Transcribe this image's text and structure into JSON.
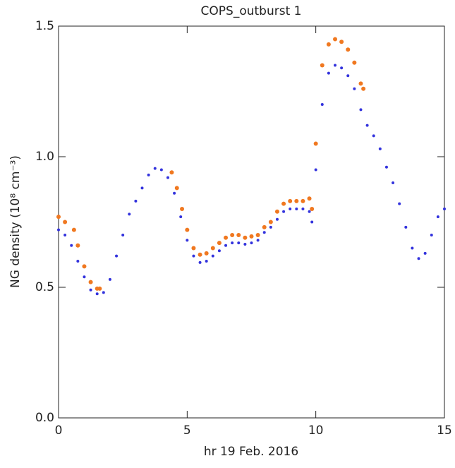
{
  "chart_data": {
    "type": "scatter",
    "title": "COPS_outburst 1",
    "x_label": "hr 19 Feb. 2016",
    "y_label": "NG density (10⁸ cm⁻³)",
    "xlim": [
      0,
      15
    ],
    "xticks": [
      0,
      5,
      10,
      15
    ],
    "ylim": [
      0,
      1.5
    ],
    "yticks": [
      {
        "value": 0,
        "label": "0.0"
      },
      0.5,
      {
        "value": 1,
        "label": "1.0"
      },
      {
        "value": 1.5,
        "label": "1.5"
      }
    ],
    "series": [
      {
        "color": "#3333dd",
        "x": [
          0,
          0.25,
          0.5,
          0.75,
          1,
          1.25,
          1.5,
          1.75,
          2,
          2.25,
          2.5,
          2.75,
          3,
          3.25,
          3.5,
          3.75,
          4,
          4.25,
          4.5,
          4.75,
          5,
          5.25,
          5.5,
          5.75,
          6,
          6.25,
          6.5,
          6.75,
          7,
          7.25,
          7.5,
          7.75,
          8,
          8.25,
          8.5,
          8.75,
          9,
          9.25,
          9.5,
          9.75,
          9.85,
          10,
          10.25,
          10.5,
          10.75,
          11,
          11.25,
          11.5,
          11.75,
          12,
          12.25,
          12.5,
          12.75,
          13,
          13.25,
          13.5,
          13.75,
          14,
          14.25,
          14.5,
          14.75,
          15
        ],
        "values": [
          0.72,
          0.7,
          0.66,
          0.6,
          0.54,
          0.49,
          0.475,
          0.48,
          0.53,
          0.62,
          0.7,
          0.78,
          0.83,
          0.88,
          0.93,
          0.955,
          0.95,
          0.92,
          0.86,
          0.77,
          0.68,
          0.62,
          0.595,
          0.6,
          0.62,
          0.64,
          0.66,
          0.67,
          0.67,
          0.665,
          0.67,
          0.68,
          0.71,
          0.73,
          0.76,
          0.79,
          0.8,
          0.8,
          0.8,
          0.79,
          0.75,
          0.95,
          1.2,
          1.32,
          1.35,
          1.34,
          1.31,
          1.26,
          1.18,
          1.12,
          1.08,
          1.03,
          0.96,
          0.9,
          0.82,
          0.73,
          0.65,
          0.61,
          0.63,
          0.7,
          0.77,
          0.8
        ]
      },
      {
        "color": "#f07820",
        "x": [
          0,
          0.25,
          0.6,
          0.75,
          1,
          1.25,
          1.5,
          1.6,
          4.4,
          4.6,
          4.8,
          5,
          5.25,
          5.5,
          5.75,
          6,
          6.25,
          6.5,
          6.75,
          7,
          7.25,
          7.5,
          7.75,
          8,
          8.25,
          8.5,
          8.75,
          9,
          9.25,
          9.5,
          9.75,
          9.85,
          10,
          10.25,
          10.5,
          10.75,
          11,
          11.25,
          11.5,
          11.75,
          11.85
        ],
        "values": [
          0.77,
          0.75,
          0.72,
          0.66,
          0.58,
          0.52,
          0.495,
          0.495,
          0.94,
          0.88,
          0.8,
          0.72,
          0.65,
          0.625,
          0.63,
          0.65,
          0.67,
          0.69,
          0.7,
          0.7,
          0.69,
          0.695,
          0.7,
          0.73,
          0.75,
          0.79,
          0.82,
          0.83,
          0.83,
          0.83,
          0.84,
          0.8,
          1.05,
          1.35,
          1.43,
          1.45,
          1.44,
          1.41,
          1.36,
          1.28,
          1.26
        ]
      }
    ]
  }
}
